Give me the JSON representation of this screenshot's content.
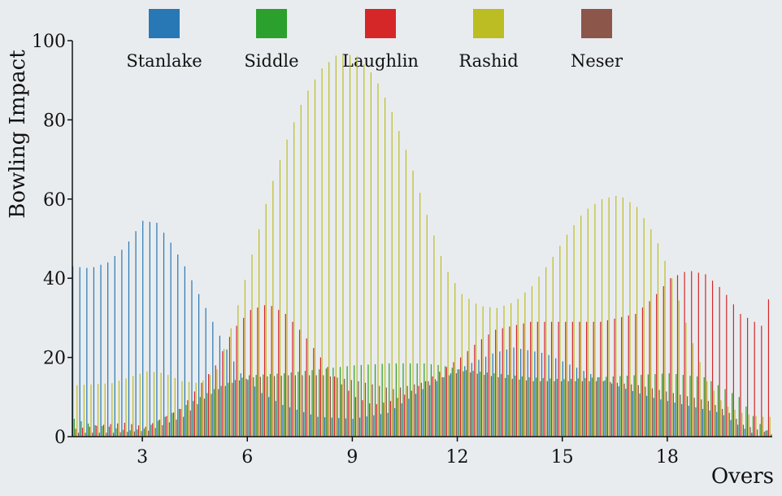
{
  "chart_data": {
    "type": "bar",
    "xlabel": "Overs",
    "ylabel": "Bowling Impact",
    "xlim": [
      1,
      21
    ],
    "ylim": [
      0,
      100
    ],
    "xticks": [
      3,
      6,
      9,
      12,
      15,
      18
    ],
    "yticks": [
      0,
      20,
      40,
      60,
      80,
      100
    ],
    "legend_position": "top",
    "grid": false,
    "bar_step": 0.2,
    "series": [
      {
        "name": "Stanlake",
        "color": "#2878b5",
        "keypoints": [
          [
            1,
            43
          ],
          [
            1.5,
            42.5
          ],
          [
            2,
            44
          ],
          [
            2.5,
            48
          ],
          [
            3,
            54.5
          ],
          [
            3.4,
            54
          ],
          [
            3.8,
            49
          ],
          [
            4.2,
            43
          ],
          [
            4.6,
            36
          ],
          [
            5,
            29
          ],
          [
            5.4,
            22
          ],
          [
            5.8,
            16
          ],
          [
            6.4,
            11
          ],
          [
            7,
            8
          ],
          [
            8,
            5
          ],
          [
            9,
            4.5
          ],
          [
            10,
            6
          ],
          [
            11,
            12
          ],
          [
            12,
            17
          ],
          [
            13,
            21
          ],
          [
            13.6,
            22.5
          ],
          [
            14.5,
            21
          ],
          [
            15.5,
            17
          ],
          [
            16.5,
            13
          ],
          [
            17.5,
            10
          ],
          [
            18.5,
            8
          ],
          [
            19.5,
            6
          ],
          [
            20,
            3
          ],
          [
            20.6,
            0
          ],
          [
            21,
            3
          ]
        ]
      },
      {
        "name": "Siddle",
        "color": "#2ca02c",
        "keypoints": [
          [
            1,
            4.5
          ],
          [
            1.5,
            3
          ],
          [
            2,
            2.5
          ],
          [
            2.5,
            1.5
          ],
          [
            3,
            2
          ],
          [
            4,
            7
          ],
          [
            5,
            12
          ],
          [
            5.5,
            14
          ],
          [
            6,
            15.5
          ],
          [
            7,
            16
          ],
          [
            8,
            17
          ],
          [
            9,
            18
          ],
          [
            10,
            18.5
          ],
          [
            11,
            18.5
          ],
          [
            11.5,
            18
          ],
          [
            12,
            17
          ],
          [
            13,
            16
          ],
          [
            14,
            15
          ],
          [
            15,
            14.5
          ],
          [
            16,
            15
          ],
          [
            17,
            15.5
          ],
          [
            18,
            16
          ],
          [
            19,
            15
          ],
          [
            20,
            10
          ],
          [
            20.5,
            4
          ],
          [
            21,
            0
          ]
        ]
      },
      {
        "name": "Laughlin",
        "color": "#d62728",
        "keypoints": [
          [
            1,
            2
          ],
          [
            1.8,
            3
          ],
          [
            2.4,
            3.5
          ],
          [
            3,
            2.5
          ],
          [
            4,
            7
          ],
          [
            5,
            18
          ],
          [
            5.5,
            27
          ],
          [
            6,
            32
          ],
          [
            6.5,
            33.5
          ],
          [
            7,
            31
          ],
          [
            7.5,
            26
          ],
          [
            8,
            20
          ],
          [
            8.5,
            14
          ],
          [
            9,
            10
          ],
          [
            9.5,
            8
          ],
          [
            10,
            9
          ],
          [
            10.5,
            11
          ],
          [
            11,
            14
          ],
          [
            11.5,
            17
          ],
          [
            12,
            20
          ],
          [
            12.5,
            24
          ],
          [
            13,
            27
          ],
          [
            14,
            29
          ],
          [
            15,
            29
          ],
          [
            16,
            29
          ],
          [
            17,
            31
          ],
          [
            17.5,
            35
          ],
          [
            18,
            40
          ],
          [
            18.5,
            42
          ],
          [
            19,
            41
          ],
          [
            19.5,
            37
          ],
          [
            20,
            31
          ],
          [
            20.6,
            28
          ],
          [
            20.9,
            38
          ]
        ]
      },
      {
        "name": "Rashid",
        "color": "#bcbd22",
        "keypoints": [
          [
            1,
            13
          ],
          [
            2,
            13.5
          ],
          [
            3,
            16.5
          ],
          [
            3.5,
            16
          ],
          [
            4,
            14
          ],
          [
            4.5,
            13.5
          ],
          [
            5,
            17
          ],
          [
            5.5,
            30
          ],
          [
            6,
            46
          ],
          [
            6.5,
            62
          ],
          [
            7,
            75
          ],
          [
            7.5,
            86
          ],
          [
            8,
            93
          ],
          [
            8.5,
            97
          ],
          [
            9,
            96
          ],
          [
            9.5,
            91
          ],
          [
            10,
            82
          ],
          [
            10.5,
            70
          ],
          [
            11,
            56
          ],
          [
            11.5,
            43
          ],
          [
            12,
            36
          ],
          [
            12.5,
            33
          ],
          [
            13,
            32.5
          ],
          [
            13.5,
            34
          ],
          [
            14,
            38
          ],
          [
            14.5,
            44
          ],
          [
            15,
            51
          ],
          [
            15.5,
            57
          ],
          [
            16,
            60
          ],
          [
            16.5,
            61
          ],
          [
            17,
            58
          ],
          [
            17.5,
            51
          ],
          [
            18,
            40
          ],
          [
            18.5,
            26
          ],
          [
            19,
            14
          ],
          [
            19.5,
            8
          ],
          [
            20,
            6
          ],
          [
            20.5,
            5
          ],
          [
            21,
            5
          ]
        ]
      },
      {
        "name": "Neser",
        "color": "#8c564b",
        "keypoints": [
          [
            1,
            1
          ],
          [
            2,
            1
          ],
          [
            3,
            1.5
          ],
          [
            4,
            5
          ],
          [
            4.5,
            9
          ],
          [
            5,
            12
          ],
          [
            5.5,
            14
          ],
          [
            6,
            15
          ],
          [
            7,
            15.5
          ],
          [
            8,
            15.5
          ],
          [
            9,
            14
          ],
          [
            10,
            12
          ],
          [
            11,
            14
          ],
          [
            12,
            16.5
          ],
          [
            13,
            15
          ],
          [
            14,
            14
          ],
          [
            15,
            14
          ],
          [
            16,
            14
          ],
          [
            17,
            13
          ],
          [
            18,
            11
          ],
          [
            19,
            9
          ],
          [
            19.6,
            6
          ],
          [
            20,
            3
          ],
          [
            21,
            0
          ]
        ]
      }
    ]
  }
}
